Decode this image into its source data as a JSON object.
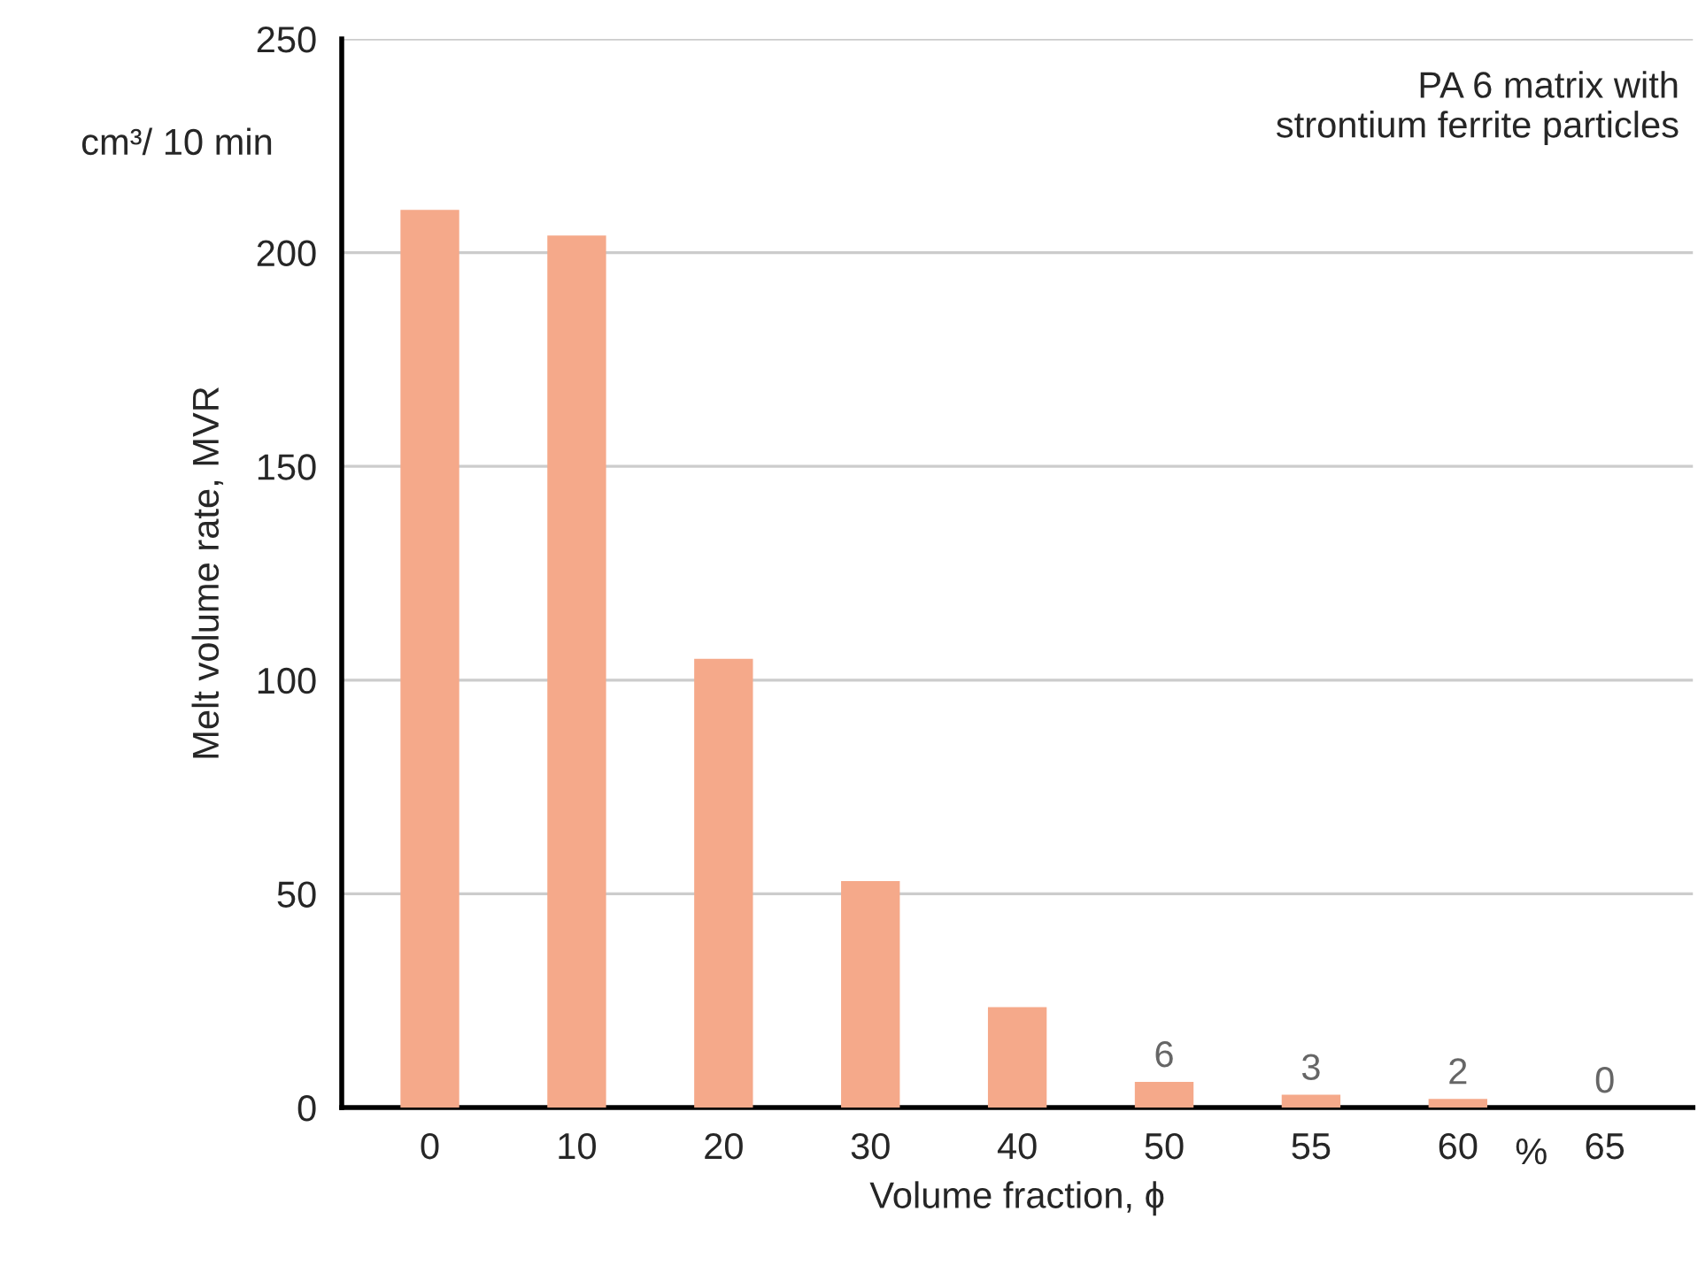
{
  "chart_data": {
    "type": "bar",
    "categories": [
      "0",
      "10",
      "20",
      "30",
      "40",
      "50",
      "55",
      "60",
      "65"
    ],
    "values": [
      210,
      204,
      105,
      53,
      23.5,
      6,
      3,
      2,
      0
    ],
    "value_labels": [
      null,
      null,
      null,
      null,
      null,
      "6",
      "3",
      "2",
      "0"
    ],
    "color": "#f5a98a",
    "ylim": [
      0,
      250
    ],
    "yticks": [
      0,
      50,
      100,
      150,
      200,
      250
    ],
    "ylabel": "Melt volume rate, MVR",
    "xlabel": "Volume fraction, ϕ",
    "annotations": [
      "PA 6 matrix with\nstrontium ferrite particles",
      "cm³/ 10 min",
      "%"
    ],
    "grid": "y"
  }
}
